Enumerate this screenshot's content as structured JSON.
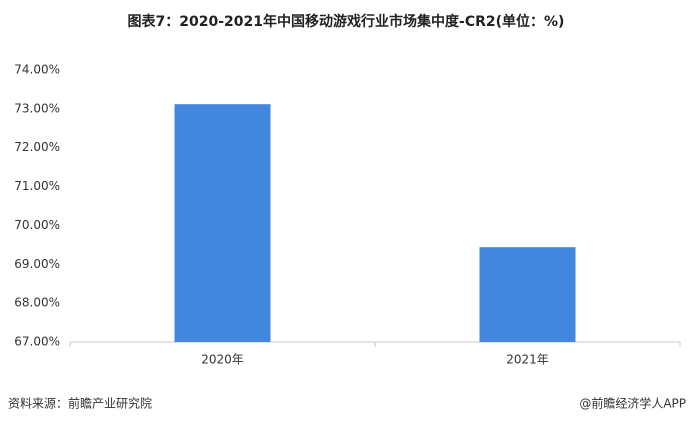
{
  "chart_data": {
    "type": "bar",
    "title": "图表7：2020-2021年中国移动游戏行业市场集中度-CR2(单位：%)",
    "categories": [
      "2020年",
      "2021年"
    ],
    "values": [
      73.12,
      69.44
    ],
    "color": "#4286e0",
    "ylim": [
      67,
      74
    ],
    "yticks": [
      {
        "value": 67,
        "label": "67.00%"
      },
      {
        "value": 68,
        "label": "68.00%"
      },
      {
        "value": 69,
        "label": "69.00%"
      },
      {
        "value": 70,
        "label": "70.00%"
      },
      {
        "value": 71,
        "label": "71.00%"
      },
      {
        "value": 72,
        "label": "72.00%"
      },
      {
        "value": 73,
        "label": "73.00%"
      },
      {
        "value": 74,
        "label": "74.00%"
      }
    ],
    "grid": false,
    "source": "资料来源：前瞻产业研究院",
    "credit": "@前瞻经济学人APP"
  }
}
